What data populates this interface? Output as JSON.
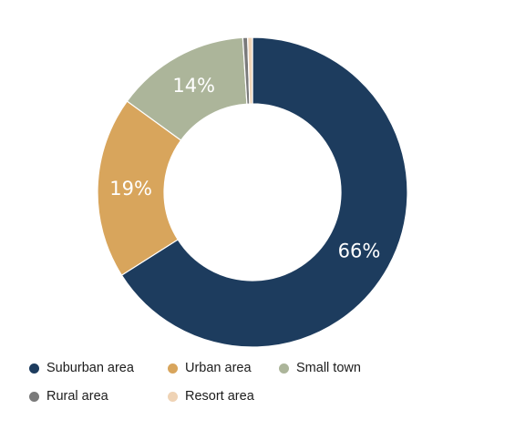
{
  "chart_data": {
    "type": "pie",
    "donut": true,
    "legend_position": "bottom",
    "categories": [
      "Suburban area",
      "Urban area",
      "Small town",
      "Rural area",
      "Resort area"
    ],
    "values": [
      66,
      19,
      14,
      0.5,
      0.5
    ],
    "labels": [
      "66%",
      "19%",
      "14%",
      "",
      ""
    ],
    "colors": [
      "#1d3c5e",
      "#d8a55c",
      "#acb59a",
      "#7a7a7a",
      "#efd3b5"
    ]
  }
}
